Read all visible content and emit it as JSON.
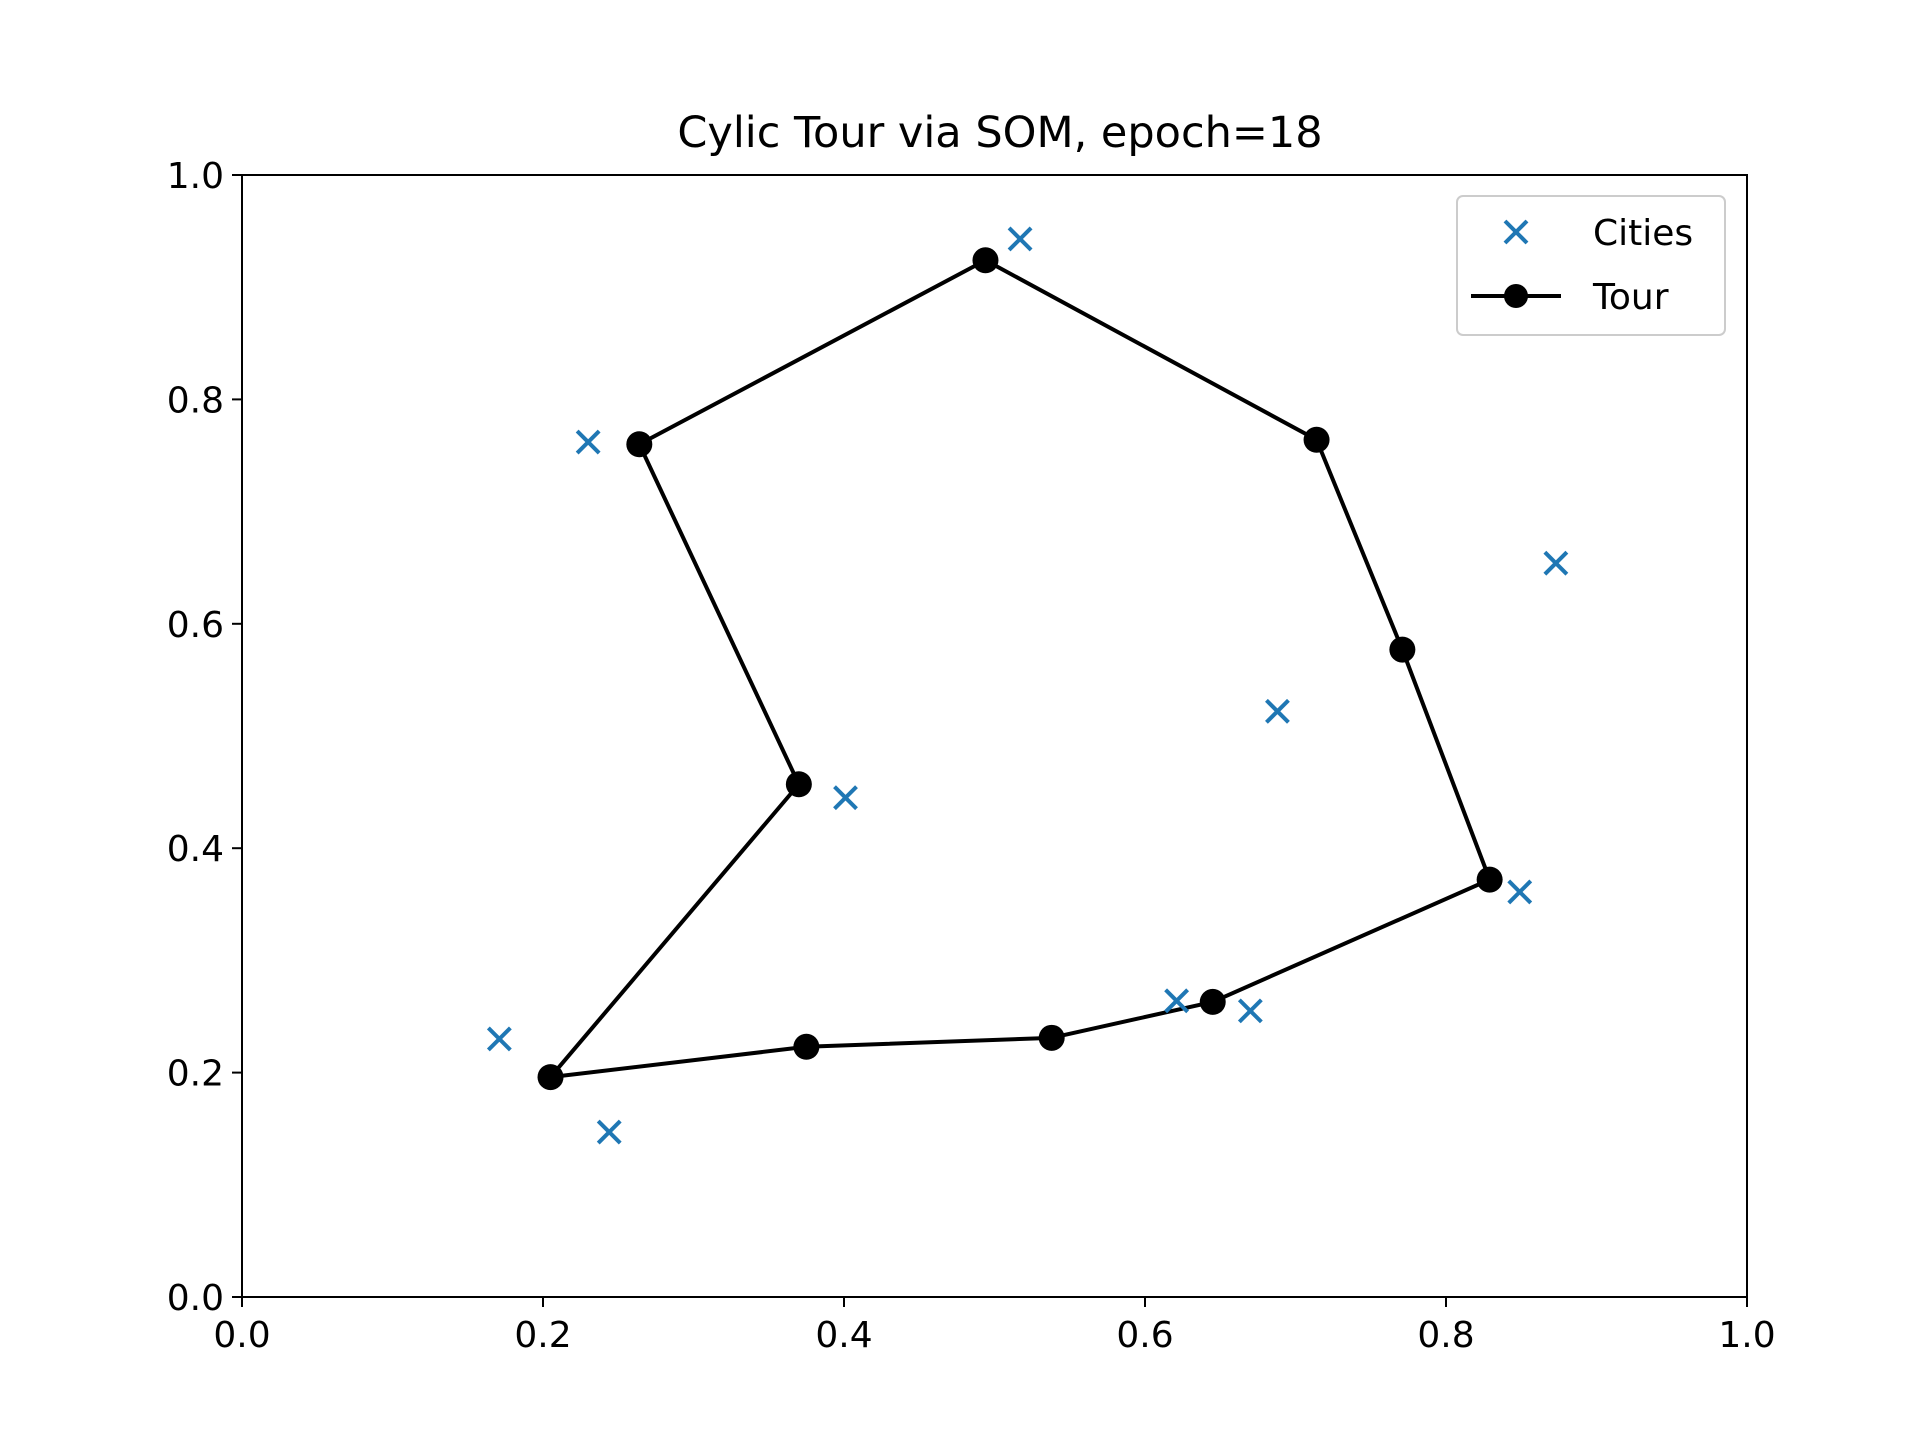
{
  "chart_data": {
    "type": "scatter",
    "title": "Cylic Tour via SOM, epoch=18",
    "xlabel": "",
    "ylabel": "",
    "xlim": [
      0.0,
      1.0
    ],
    "ylim": [
      0.0,
      1.0
    ],
    "x_ticks": [
      "0.0",
      "0.2",
      "0.4",
      "0.6",
      "0.8",
      "1.0"
    ],
    "y_ticks": [
      "0.0",
      "0.2",
      "0.4",
      "0.6",
      "0.8",
      "1.0"
    ],
    "grid": false,
    "legend_position": "top-right",
    "series": [
      {
        "name": "Cities",
        "kind": "scatter",
        "marker": "x",
        "color": "#1f77b4",
        "points": [
          [
            0.517,
            0.943
          ],
          [
            0.23,
            0.762
          ],
          [
            0.873,
            0.654
          ],
          [
            0.688,
            0.522
          ],
          [
            0.401,
            0.445
          ],
          [
            0.849,
            0.361
          ],
          [
            0.621,
            0.264
          ],
          [
            0.67,
            0.255
          ],
          [
            0.171,
            0.23
          ],
          [
            0.244,
            0.147
          ]
        ]
      },
      {
        "name": "Tour",
        "kind": "line",
        "marker": "circle",
        "closed": true,
        "color": "#000000",
        "points": [
          [
            0.494,
            0.924
          ],
          [
            0.714,
            0.764
          ],
          [
            0.771,
            0.577
          ],
          [
            0.829,
            0.372
          ],
          [
            0.645,
            0.263
          ],
          [
            0.538,
            0.231
          ],
          [
            0.375,
            0.223
          ],
          [
            0.205,
            0.196
          ],
          [
            0.37,
            0.457
          ],
          [
            0.264,
            0.76
          ]
        ]
      }
    ]
  }
}
